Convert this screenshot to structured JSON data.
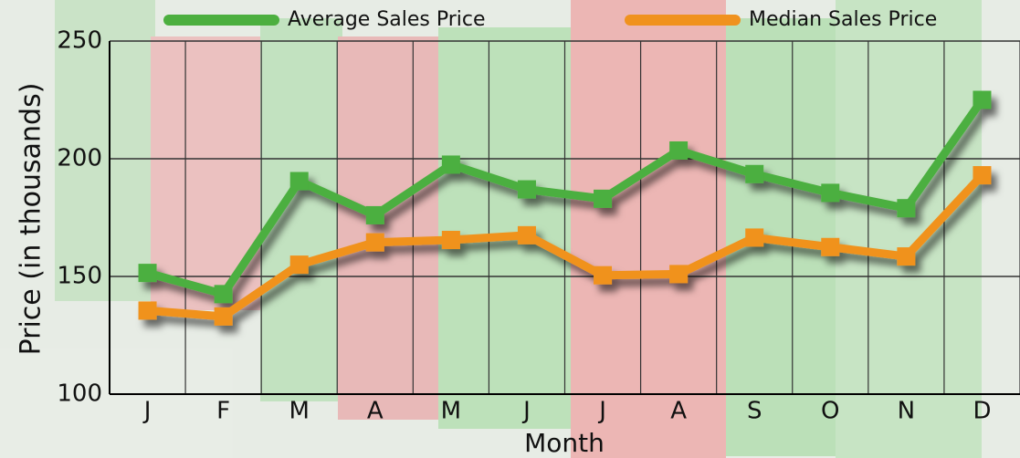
{
  "chart_data": {
    "type": "line",
    "y_label": "Price (in thousands)",
    "x_label": "Month",
    "categories": [
      "J",
      "F",
      "M",
      "A",
      "M",
      "J",
      "J",
      "A",
      "S",
      "O",
      "N",
      "D"
    ],
    "series": [
      {
        "name": "Average Sales Price",
        "color": "#4caf3f",
        "values": [
          151.5,
          142.5,
          190.5,
          176,
          197.5,
          187,
          183,
          203.5,
          193.5,
          185.5,
          179,
          225
        ]
      },
      {
        "name": "Median Sales Price",
        "color": "#f0921e",
        "values": [
          135.5,
          133,
          155,
          164.5,
          165.5,
          167.5,
          150.5,
          151,
          166.5,
          162.5,
          158.5,
          193
        ]
      }
    ],
    "ylim": [
      100,
      250
    ],
    "yticks": [
      100,
      150,
      200,
      250
    ],
    "grid": true,
    "legend": "top"
  }
}
